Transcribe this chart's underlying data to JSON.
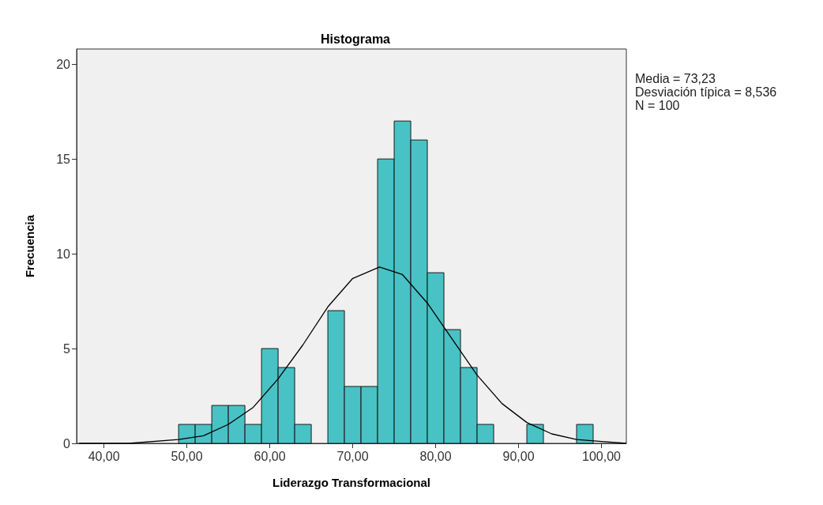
{
  "chart_data": {
    "type": "histogram",
    "title": "Histograma",
    "xlabel": "Liderazgo Transformacional",
    "ylabel": "Frecuencia",
    "annotations": [
      "Media = 73,23",
      "Desviación típica = 8,536",
      "N = 100"
    ],
    "bins": [
      49,
      51,
      53,
      55,
      57,
      59,
      61,
      63,
      65,
      67,
      69,
      71,
      73,
      75,
      77,
      79,
      81,
      83,
      85,
      87,
      89,
      91,
      93,
      95,
      97,
      99
    ],
    "series": [
      {
        "color": "#48c2c5",
        "values": [
          1,
          1,
          2,
          2,
          1,
          5,
          4,
          1,
          0,
          7,
          3,
          3,
          15,
          17,
          16,
          9,
          6,
          4,
          1,
          0,
          0,
          1,
          0,
          0,
          1
        ]
      },
      {
        "type": "line",
        "color": "#000000",
        "x": [
          37,
          43,
          49,
          52,
          55,
          58,
          61,
          64,
          67,
          70,
          73.23,
          76,
          79,
          82,
          85,
          88,
          91,
          94,
          97,
          100,
          103
        ],
        "values": [
          0,
          0,
          0.2,
          0.4,
          1,
          1.9,
          3.4,
          5.2,
          7.2,
          8.7,
          9.3,
          8.9,
          7.4,
          5.5,
          3.6,
          2.1,
          1.1,
          0.5,
          0.2,
          0.1,
          0
        ]
      }
    ],
    "xlim": [
      36.7,
      103
    ],
    "xticks": [
      {
        "value": 40,
        "label": "40,00"
      },
      {
        "value": 50,
        "label": "50,00"
      },
      {
        "value": 60,
        "label": "60,00"
      },
      {
        "value": 70,
        "label": "70,00"
      },
      {
        "value": 80,
        "label": "80,00"
      },
      {
        "value": 90,
        "label": "90,00"
      },
      {
        "value": 100,
        "label": "100,00"
      }
    ],
    "ylim": [
      0,
      20.8
    ],
    "yticks": [
      0,
      5,
      10,
      15,
      20
    ],
    "grid": false,
    "marker": "none",
    "line_style": "solid"
  }
}
